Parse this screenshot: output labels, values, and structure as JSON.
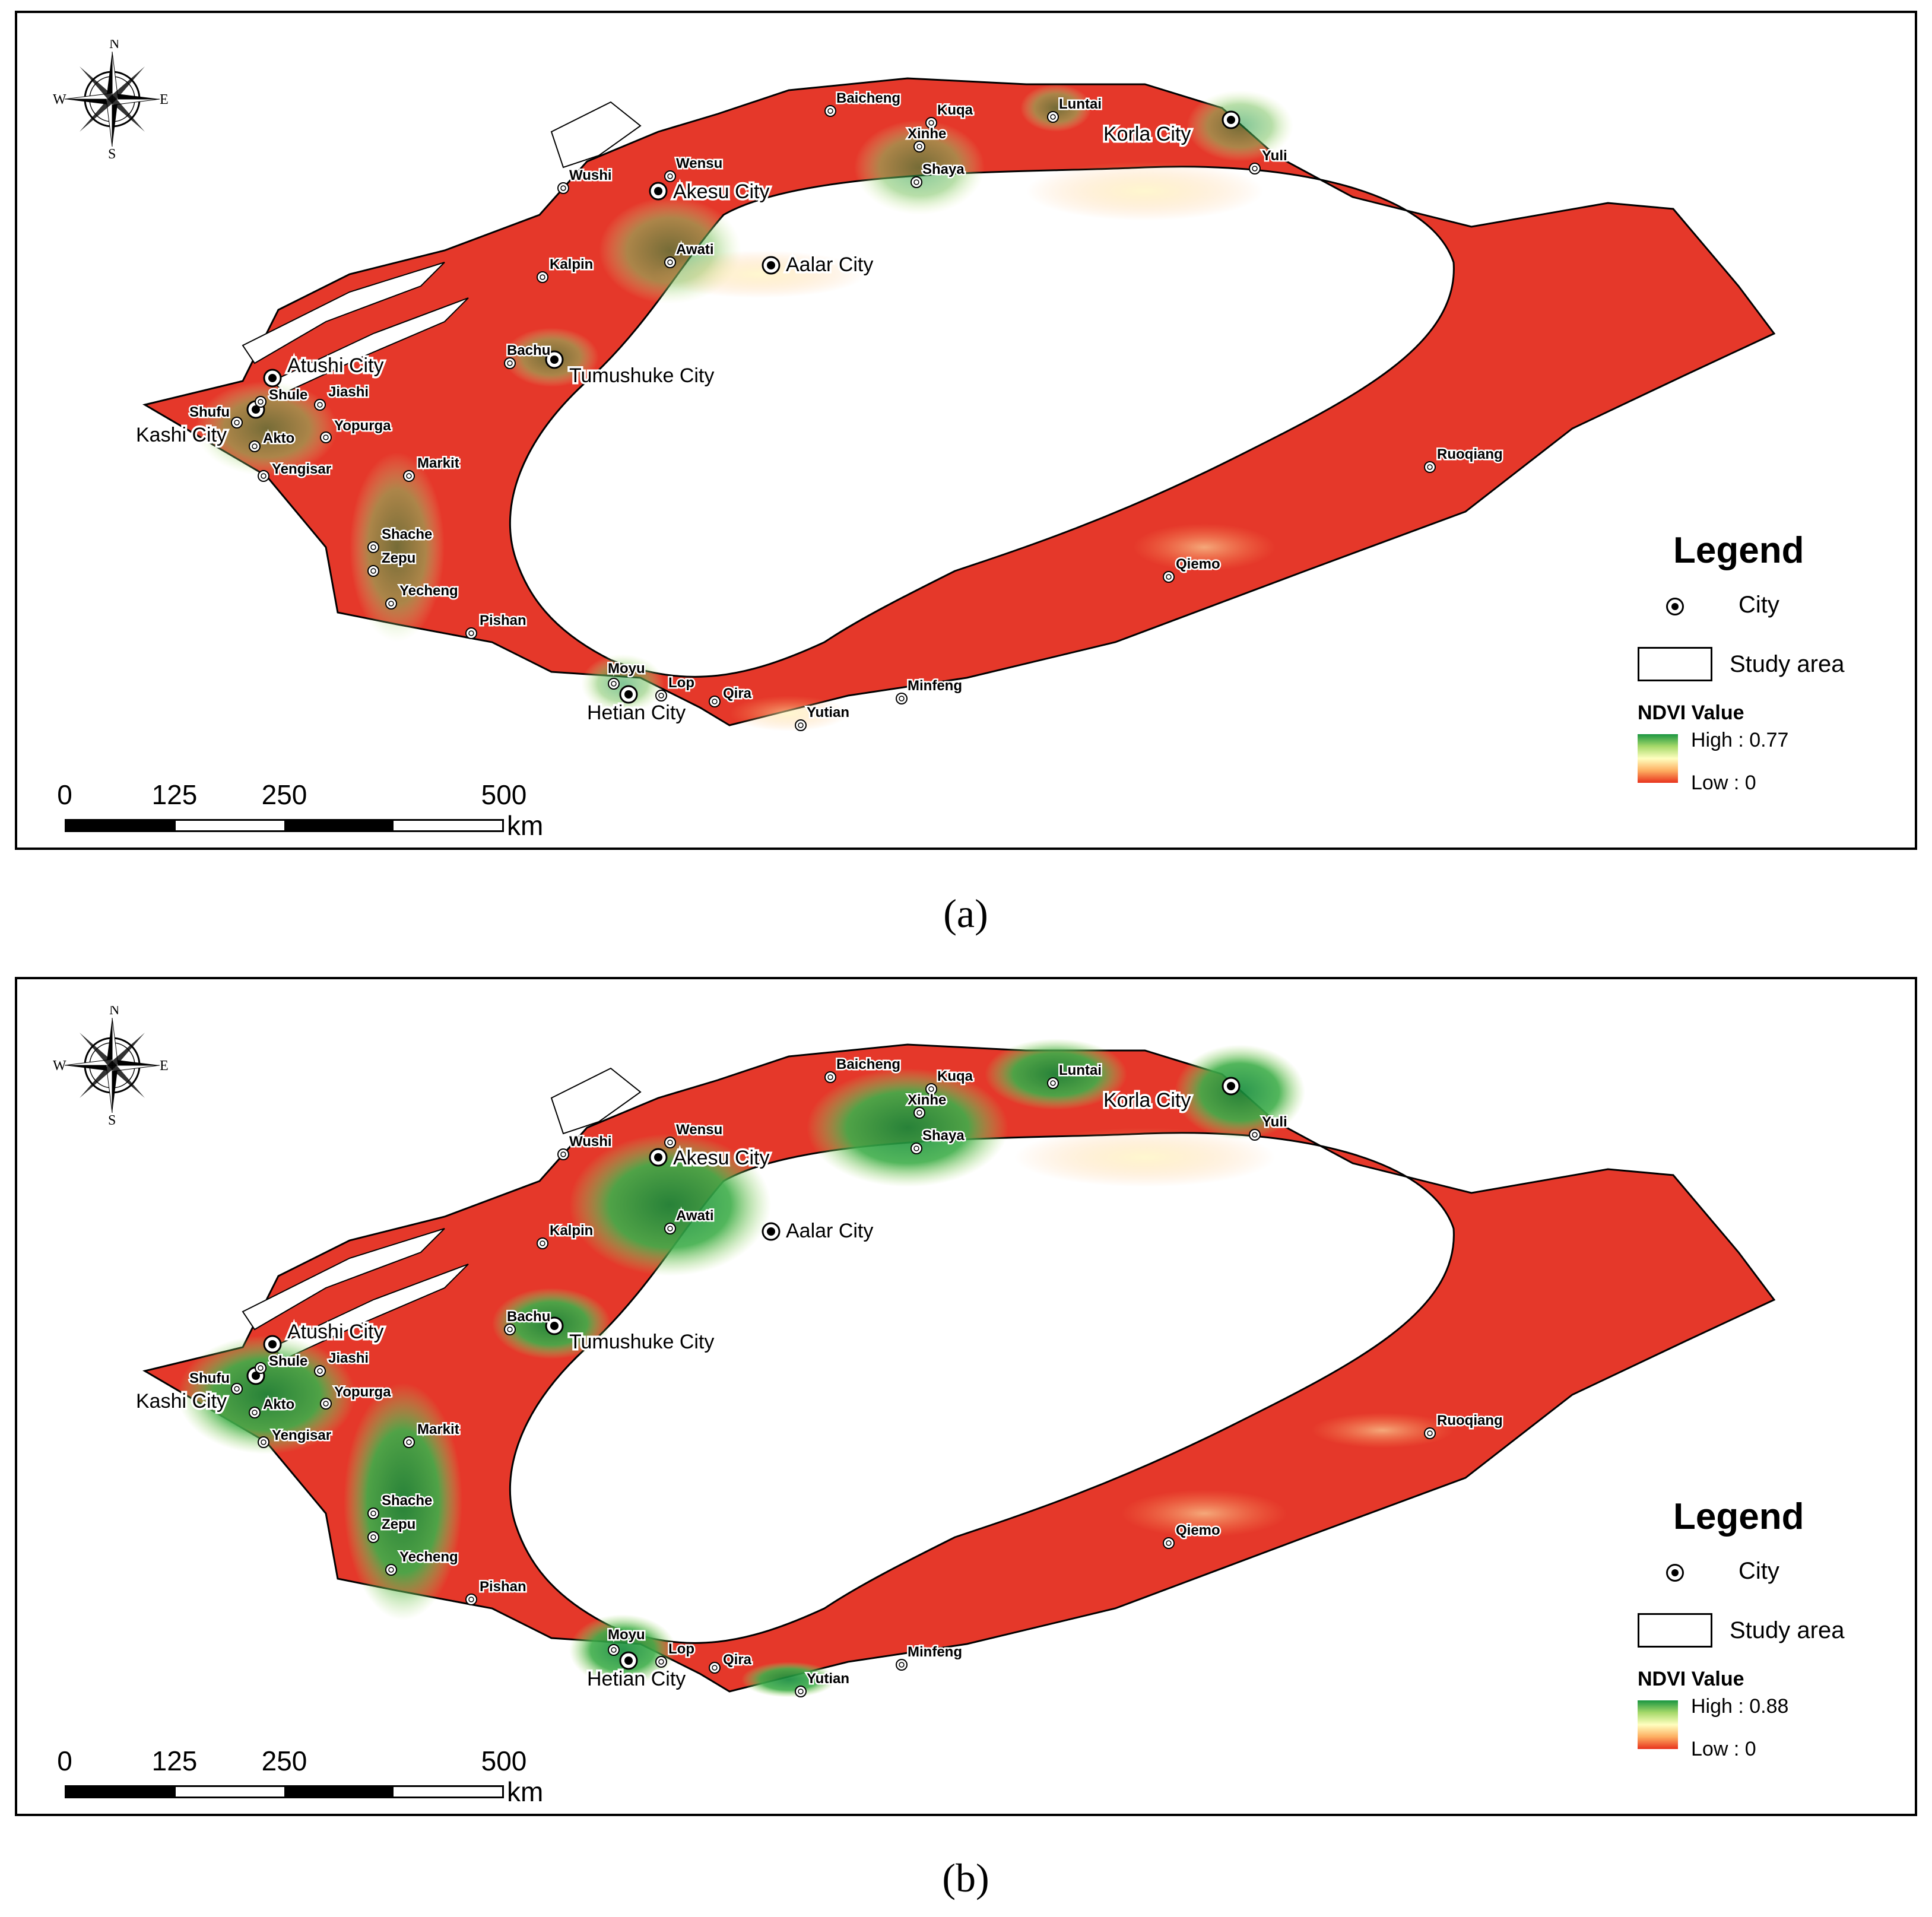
{
  "panels": [
    {
      "id": "a",
      "caption": "(a)",
      "legend": {
        "title": "Legend",
        "city_label": "City",
        "study_area_label": "Study area",
        "ndvi_title": "NDVI Value",
        "high": "High : 0.77",
        "low": "Low : 0"
      },
      "green_intensity": 0.45
    },
    {
      "id": "b",
      "caption": "(b)",
      "legend": {
        "title": "Legend",
        "city_label": "City",
        "study_area_label": "Study area",
        "ndvi_title": "NDVI Value",
        "high": "High : 0.88",
        "low": "Low : 0"
      },
      "green_intensity": 0.85
    }
  ],
  "compass": {
    "n": "N",
    "s": "S",
    "e": "E",
    "w": "W"
  },
  "scale_bar": {
    "ticks": [
      "0",
      "125",
      "250",
      "500"
    ],
    "unit": "km"
  },
  "cities": [
    "Akesu City",
    "Aalar City",
    "Korla City",
    "Atushi City",
    "Tumushuke City",
    "Kashi City",
    "Hetian City"
  ],
  "towns": [
    "Baicheng",
    "Kuqa",
    "Luntai",
    "Xinhe",
    "Shaya",
    "Yuli",
    "Wushi",
    "Wensu",
    "Awati",
    "Kalpin",
    "Bachu",
    "Shufu",
    "Shule",
    "Jiashi",
    "Akto",
    "Yopurga",
    "Yengisar",
    "Markit",
    "Shache",
    "Zepu",
    "Yecheng",
    "Pishan",
    "Moyu",
    "Lop",
    "Qira",
    "Yutian",
    "Minfeng",
    "Qiemo",
    "Ruoqiang"
  ],
  "colors": {
    "background_raster": "#e5382a",
    "low": "#e8321c",
    "mid": "#ffffbf",
    "high": "#1a9641",
    "study_area_outline": "#000000"
  }
}
